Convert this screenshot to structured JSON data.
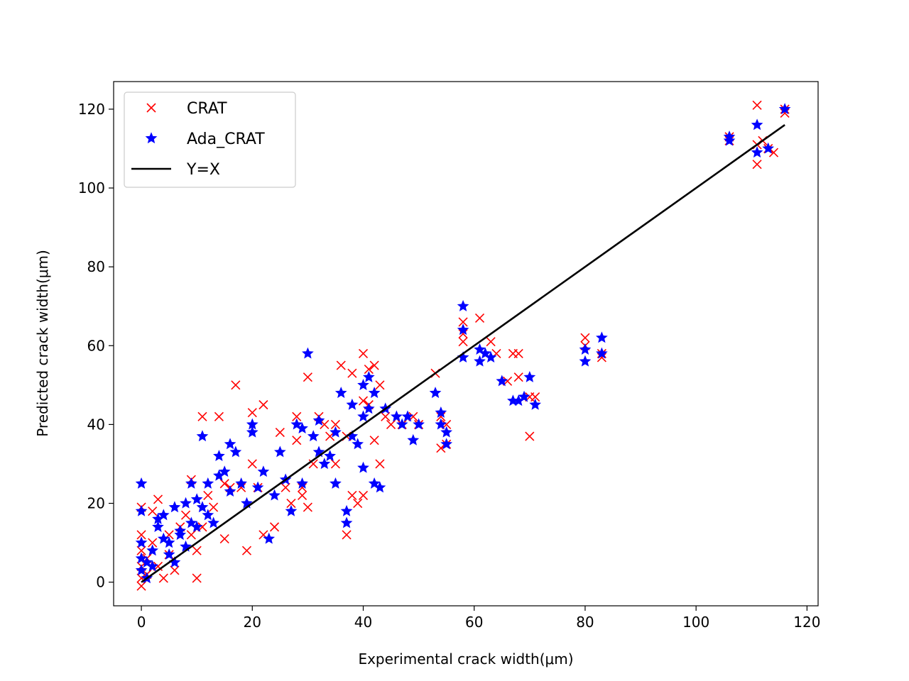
{
  "chart_data": {
    "type": "scatter",
    "title": "",
    "xlabel": "Experimental crack width(μm)",
    "ylabel": "Predicted crack width(μm)",
    "xlim": [
      -5,
      122
    ],
    "ylim": [
      -6,
      127
    ],
    "xticks": [
      0,
      20,
      40,
      60,
      80,
      100,
      120
    ],
    "yticks": [
      0,
      20,
      40,
      60,
      80,
      100,
      120
    ],
    "grid": false,
    "legend_position": "top-left",
    "series": [
      {
        "name": "CRAT",
        "marker": "x",
        "color": "#ff0000",
        "points": [
          [
            0,
            19
          ],
          [
            0,
            12
          ],
          [
            0,
            8
          ],
          [
            0,
            4
          ],
          [
            0,
            1
          ],
          [
            0,
            -1
          ],
          [
            1,
            2
          ],
          [
            1,
            6
          ],
          [
            2,
            10
          ],
          [
            2,
            18
          ],
          [
            3,
            21
          ],
          [
            3,
            4
          ],
          [
            4,
            1
          ],
          [
            5,
            7
          ],
          [
            5,
            12
          ],
          [
            6,
            3
          ],
          [
            7,
            14
          ],
          [
            8,
            17
          ],
          [
            9,
            26
          ],
          [
            9,
            12
          ],
          [
            10,
            1
          ],
          [
            10,
            8
          ],
          [
            11,
            14
          ],
          [
            11,
            42
          ],
          [
            12,
            22
          ],
          [
            13,
            19
          ],
          [
            14,
            42
          ],
          [
            15,
            25
          ],
          [
            15,
            11
          ],
          [
            16,
            24
          ],
          [
            17,
            50
          ],
          [
            18,
            24
          ],
          [
            19,
            8
          ],
          [
            20,
            43
          ],
          [
            20,
            30
          ],
          [
            21,
            24
          ],
          [
            22,
            45
          ],
          [
            22,
            12
          ],
          [
            24,
            14
          ],
          [
            25,
            38
          ],
          [
            26,
            24
          ],
          [
            27,
            20
          ],
          [
            28,
            42
          ],
          [
            28,
            36
          ],
          [
            29,
            24
          ],
          [
            29,
            22
          ],
          [
            30,
            52
          ],
          [
            30,
            19
          ],
          [
            31,
            30
          ],
          [
            32,
            42
          ],
          [
            33,
            40
          ],
          [
            34,
            37
          ],
          [
            35,
            30
          ],
          [
            35,
            40
          ],
          [
            36,
            55
          ],
          [
            37,
            12
          ],
          [
            37,
            37
          ],
          [
            38,
            53
          ],
          [
            38,
            22
          ],
          [
            39,
            20
          ],
          [
            40,
            58
          ],
          [
            40,
            46
          ],
          [
            40,
            22
          ],
          [
            41,
            54
          ],
          [
            41,
            45
          ],
          [
            42,
            55
          ],
          [
            42,
            36
          ],
          [
            43,
            30
          ],
          [
            43,
            50
          ],
          [
            44,
            42
          ],
          [
            45,
            40
          ],
          [
            47,
            40
          ],
          [
            49,
            42
          ],
          [
            50,
            40
          ],
          [
            53,
            53
          ],
          [
            54,
            34
          ],
          [
            54,
            42
          ],
          [
            55,
            35
          ],
          [
            55,
            40
          ],
          [
            58,
            61
          ],
          [
            58,
            66
          ],
          [
            58,
            63
          ],
          [
            61,
            67
          ],
          [
            63,
            61
          ],
          [
            64,
            58
          ],
          [
            66,
            51
          ],
          [
            67,
            58
          ],
          [
            68,
            52
          ],
          [
            68,
            58
          ],
          [
            70,
            37
          ],
          [
            70,
            47
          ],
          [
            71,
            47
          ],
          [
            80,
            62
          ],
          [
            80,
            60
          ],
          [
            83,
            57
          ],
          [
            83,
            58
          ],
          [
            106,
            112
          ],
          [
            106,
            113
          ],
          [
            111,
            106
          ],
          [
            111,
            121
          ],
          [
            111,
            111
          ],
          [
            112,
            112
          ],
          [
            113,
            110
          ],
          [
            114,
            109
          ],
          [
            116,
            120
          ],
          [
            116,
            119
          ]
        ]
      },
      {
        "name": "Ada_CRAT",
        "marker": "*",
        "color": "#0000ff",
        "points": [
          [
            0,
            25
          ],
          [
            0,
            18
          ],
          [
            0,
            10
          ],
          [
            0,
            6
          ],
          [
            0,
            3
          ],
          [
            1,
            1
          ],
          [
            1,
            5
          ],
          [
            2,
            4
          ],
          [
            2,
            8
          ],
          [
            3,
            14
          ],
          [
            3,
            16
          ],
          [
            4,
            17
          ],
          [
            4,
            11
          ],
          [
            5,
            7
          ],
          [
            5,
            10
          ],
          [
            6,
            19
          ],
          [
            6,
            5
          ],
          [
            7,
            12
          ],
          [
            7,
            13
          ],
          [
            8,
            20
          ],
          [
            8,
            9
          ],
          [
            9,
            25
          ],
          [
            9,
            15
          ],
          [
            10,
            21
          ],
          [
            10,
            14
          ],
          [
            11,
            19
          ],
          [
            11,
            37
          ],
          [
            12,
            25
          ],
          [
            12,
            17
          ],
          [
            13,
            15
          ],
          [
            14,
            27
          ],
          [
            14,
            32
          ],
          [
            15,
            28
          ],
          [
            16,
            23
          ],
          [
            16,
            35
          ],
          [
            17,
            33
          ],
          [
            18,
            25
          ],
          [
            19,
            20
          ],
          [
            20,
            40
          ],
          [
            20,
            38
          ],
          [
            21,
            24
          ],
          [
            22,
            28
          ],
          [
            23,
            11
          ],
          [
            24,
            22
          ],
          [
            25,
            33
          ],
          [
            26,
            26
          ],
          [
            27,
            18
          ],
          [
            28,
            40
          ],
          [
            29,
            39
          ],
          [
            29,
            25
          ],
          [
            30,
            58
          ],
          [
            31,
            37
          ],
          [
            32,
            33
          ],
          [
            32,
            41
          ],
          [
            33,
            30
          ],
          [
            34,
            32
          ],
          [
            35,
            38
          ],
          [
            35,
            25
          ],
          [
            36,
            48
          ],
          [
            37,
            18
          ],
          [
            37,
            15
          ],
          [
            38,
            45
          ],
          [
            38,
            37
          ],
          [
            39,
            35
          ],
          [
            40,
            29
          ],
          [
            40,
            42
          ],
          [
            40,
            50
          ],
          [
            41,
            52
          ],
          [
            41,
            44
          ],
          [
            42,
            48
          ],
          [
            42,
            25
          ],
          [
            43,
            24
          ],
          [
            44,
            44
          ],
          [
            46,
            42
          ],
          [
            47,
            40
          ],
          [
            48,
            42
          ],
          [
            49,
            36
          ],
          [
            50,
            40
          ],
          [
            53,
            48
          ],
          [
            54,
            43
          ],
          [
            54,
            40
          ],
          [
            55,
            35
          ],
          [
            55,
            38
          ],
          [
            58,
            70
          ],
          [
            58,
            64
          ],
          [
            58,
            57
          ],
          [
            61,
            56
          ],
          [
            61,
            59
          ],
          [
            62,
            58
          ],
          [
            63,
            57
          ],
          [
            65,
            51
          ],
          [
            67,
            46
          ],
          [
            68,
            46
          ],
          [
            69,
            47
          ],
          [
            70,
            52
          ],
          [
            71,
            45
          ],
          [
            80,
            59
          ],
          [
            80,
            56
          ],
          [
            83,
            62
          ],
          [
            83,
            58
          ],
          [
            106,
            112
          ],
          [
            106,
            113
          ],
          [
            111,
            109
          ],
          [
            111,
            116
          ],
          [
            113,
            110
          ],
          [
            116,
            120
          ]
        ]
      },
      {
        "name": "Y=X",
        "type": "line",
        "color": "#000000",
        "points": [
          [
            0,
            0
          ],
          [
            116,
            116
          ]
        ]
      }
    ]
  }
}
